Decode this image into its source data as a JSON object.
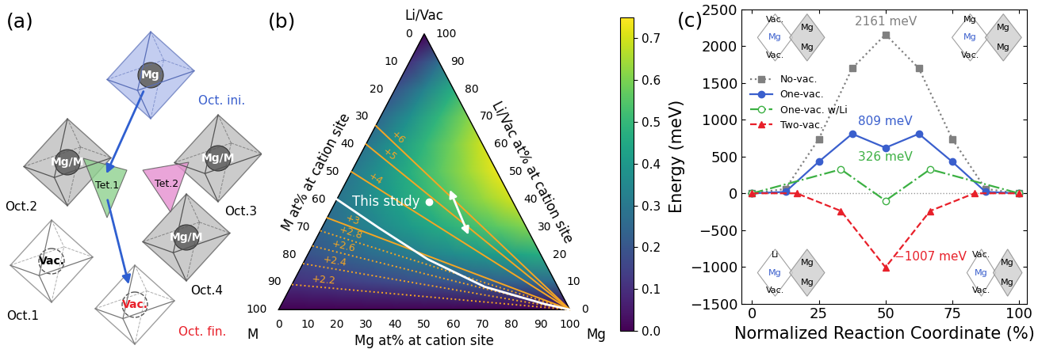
{
  "panel_a": {
    "label": "(a)",
    "octahedra": [
      {
        "name": "Oct. ini.",
        "content": "Mg"
      },
      {
        "name": "Oct.2",
        "content": "Mg/M"
      },
      {
        "name": "Oct.3",
        "content": "Mg/M"
      },
      {
        "name": "Oct.4",
        "content": "Mg/M"
      },
      {
        "name": "Oct.1",
        "content": "Vac."
      },
      {
        "name": "Oct. fin.",
        "content": "Vac."
      }
    ],
    "tetrahedra": [
      "Tet.1",
      "Tet.2"
    ]
  },
  "chart_data": [
    {
      "type": "ternary_heatmap",
      "label": "(b)",
      "corners": {
        "top": "Li/Vac",
        "left": "M",
        "right": "Mg"
      },
      "axis_labels": {
        "left": "M at% at cation site",
        "right": "Li/Vac at% at cation site",
        "bottom": "Mg at% at cation site"
      },
      "ticks": [
        0,
        10,
        20,
        30,
        40,
        50,
        60,
        70,
        80,
        90,
        100
      ],
      "cells": [
        {
          "li_vac": 0,
          "mg": [
            0,
            10,
            20,
            30,
            40,
            50,
            60,
            70,
            80,
            90,
            100
          ],
          "values": [
            0,
            0,
            0,
            0,
            0,
            0,
            0,
            0,
            0,
            0,
            0
          ]
        },
        {
          "li_vac": 10,
          "mg": [
            0,
            10,
            20,
            30,
            40,
            50,
            60,
            70,
            80,
            90
          ],
          "values": [
            0.108,
            0.125,
            0.142,
            0.159,
            0.176,
            0.193,
            0.21,
            0.227,
            0.244,
            0.261
          ]
        },
        {
          "li_vac": 20,
          "mg": [
            0,
            10,
            20,
            30,
            40,
            50,
            60,
            70,
            80
          ],
          "values": [
            0.192,
            0.226,
            0.26,
            0.294,
            0.328,
            0.362,
            0.396,
            0.43,
            0.464
          ]
        },
        {
          "li_vac": 30,
          "mg": [
            0,
            10,
            20,
            30,
            40,
            50,
            60,
            70
          ],
          "values": [
            0.252,
            0.303,
            0.354,
            0.405,
            0.456,
            0.507,
            0.558,
            0.609
          ]
        },
        {
          "li_vac": 40,
          "mg": [
            0,
            10,
            20,
            30,
            40,
            50,
            60
          ],
          "values": [
            0.288,
            0.356,
            0.424,
            0.492,
            0.56,
            0.628,
            0.696
          ]
        },
        {
          "li_vac": 50,
          "mg": [
            0,
            10,
            20,
            30,
            40,
            50
          ],
          "values": [
            0.3,
            0.385,
            0.47,
            0.555,
            0.64,
            0.725
          ]
        },
        {
          "li_vac": 60,
          "mg": [
            0,
            10,
            20,
            30,
            40
          ],
          "values": [
            0.288,
            0.39,
            0.492,
            0.594,
            0.696
          ]
        },
        {
          "li_vac": 70,
          "mg": [
            0,
            10,
            20,
            30
          ],
          "values": [
            0.252,
            0.371,
            0.49,
            0.609
          ]
        },
        {
          "li_vac": 80,
          "mg": [
            0,
            10,
            20
          ],
          "values": [
            0.192,
            0.328,
            0.464
          ]
        },
        {
          "li_vac": 90,
          "mg": [
            0,
            10
          ],
          "values": [
            0.108,
            0.261
          ]
        },
        {
          "li_vac": 100,
          "mg": [
            0
          ],
          "values": [
            0
          ]
        }
      ],
      "colorbar": {
        "range": [
          0,
          0.75
        ],
        "ticks": [
          {
            "value": 0,
            "label": "0.0"
          },
          0.1,
          0.2,
          0.3,
          0.4,
          0.5,
          0.6,
          0.7
        ]
      },
      "oxidation_lines": {
        "color": "#f5a623",
        "lines": [
          {
            "label": "+6",
            "m_at_left_edge": 33.3,
            "line_style": "solid"
          },
          {
            "label": "+5",
            "m_at_left_edge": 40,
            "line_style": "solid"
          },
          {
            "label": "+4",
            "m_at_left_edge": 50,
            "line_style": "solid"
          },
          {
            "label": "+3",
            "m_at_left_edge": 66.7,
            "line_style": "solid"
          },
          {
            "label": "+2.8",
            "m_at_left_edge": 71.4,
            "line_style": "dotted"
          },
          {
            "label": "+2.6",
            "m_at_left_edge": 76.9,
            "line_style": "dotted"
          },
          {
            "label": "+2.4",
            "m_at_left_edge": 83.3,
            "line_style": "dotted"
          },
          {
            "label": "+2.2",
            "m_at_left_edge": 90.9,
            "line_style": "dotted"
          }
        ]
      },
      "this_study": {
        "label": "This study",
        "color": "#ffffff",
        "curve": {
          "mg": [
            0,
            19.7,
            42,
            66.6,
            90.5,
            100
          ],
          "li_vac": [
            40,
            29.6,
            18.3,
            8.3,
            2,
            0
          ]
        },
        "point": {
          "mg": 32,
          "li_vac": 39.2
        },
        "arrow": {
          "mg": [
            36.4,
            52.3
          ],
          "li_vac": [
            44.2,
            26.4
          ]
        }
      }
    },
    {
      "type": "line",
      "label": "(c)",
      "xlabel": "Normalized Reaction Coordinate (%)",
      "ylabel": "Energy (meV)",
      "xlim": [
        -4,
        103
      ],
      "ylim": [
        -1500,
        2500
      ],
      "xticks": [
        0,
        25,
        50,
        75,
        100
      ],
      "yticks": [
        {
          "value": -1500,
          "label": "−1500"
        },
        {
          "value": -1000,
          "label": "−1000"
        },
        {
          "value": -500,
          "label": "−500"
        },
        0,
        500,
        1000,
        1500,
        2000,
        2500
      ],
      "legend": "upper left",
      "baseline": 0,
      "series": [
        {
          "name": "No-vac.",
          "color": "#808080",
          "marker": "square",
          "line_style": "dotted",
          "x": [
            0,
            12.5,
            25,
            37.5,
            50,
            62.5,
            75,
            87.5,
            100
          ],
          "values": [
            0,
            60,
            740,
            1700,
            2161,
            1700,
            740,
            60,
            0
          ]
        },
        {
          "name": "One-vac.",
          "color": "#3a5fcd",
          "marker": "circle",
          "line_style": "solid",
          "x": [
            0,
            12.5,
            25,
            37.5,
            50,
            62.5,
            75,
            87.5,
            100
          ],
          "values": [
            0,
            20,
            430,
            809,
            620,
            809,
            430,
            20,
            0
          ]
        },
        {
          "name": "One-vac. w/Li",
          "color": "#3cb043",
          "marker": "open_circle",
          "line_style": "dashdot",
          "x": [
            0,
            33.3,
            50,
            66.7,
            100
          ],
          "values": [
            0,
            326,
            -100,
            326,
            0
          ]
        },
        {
          "name": "Two-vac.",
          "color": "#e8202a",
          "marker": "triangle",
          "line_style": "dashed",
          "x": [
            0,
            16.7,
            33.3,
            50,
            66.7,
            83.3,
            100
          ],
          "values": [
            0,
            0,
            -240,
            -1007,
            -240,
            0,
            0
          ]
        }
      ],
      "annotations": [
        {
          "text": "2161 meV",
          "x": 50,
          "y": 2161,
          "color": "#808080"
        },
        {
          "text": "809 meV",
          "x": 50,
          "y": 809,
          "color": "#3a5fcd"
        },
        {
          "text": "326 meV",
          "x": 50,
          "y": 326,
          "color": "#3cb043"
        },
        {
          "text": "−1007 meV",
          "x": 50,
          "y": -1007,
          "color": "#e8202a"
        }
      ],
      "insets": [
        {
          "labels": [
            "Vac.",
            "Mg",
            "Mg",
            "Mg",
            "Vac."
          ]
        },
        {
          "labels": [
            "Mg",
            "Mg",
            "Mg",
            "Mg",
            "Vac."
          ]
        },
        {
          "labels": [
            "Li",
            "Mg",
            "Mg",
            "Mg",
            "Vac."
          ]
        },
        {
          "labels": [
            "Vac.",
            "Mg",
            "Mg",
            "Mg",
            "Vac."
          ]
        }
      ]
    }
  ]
}
